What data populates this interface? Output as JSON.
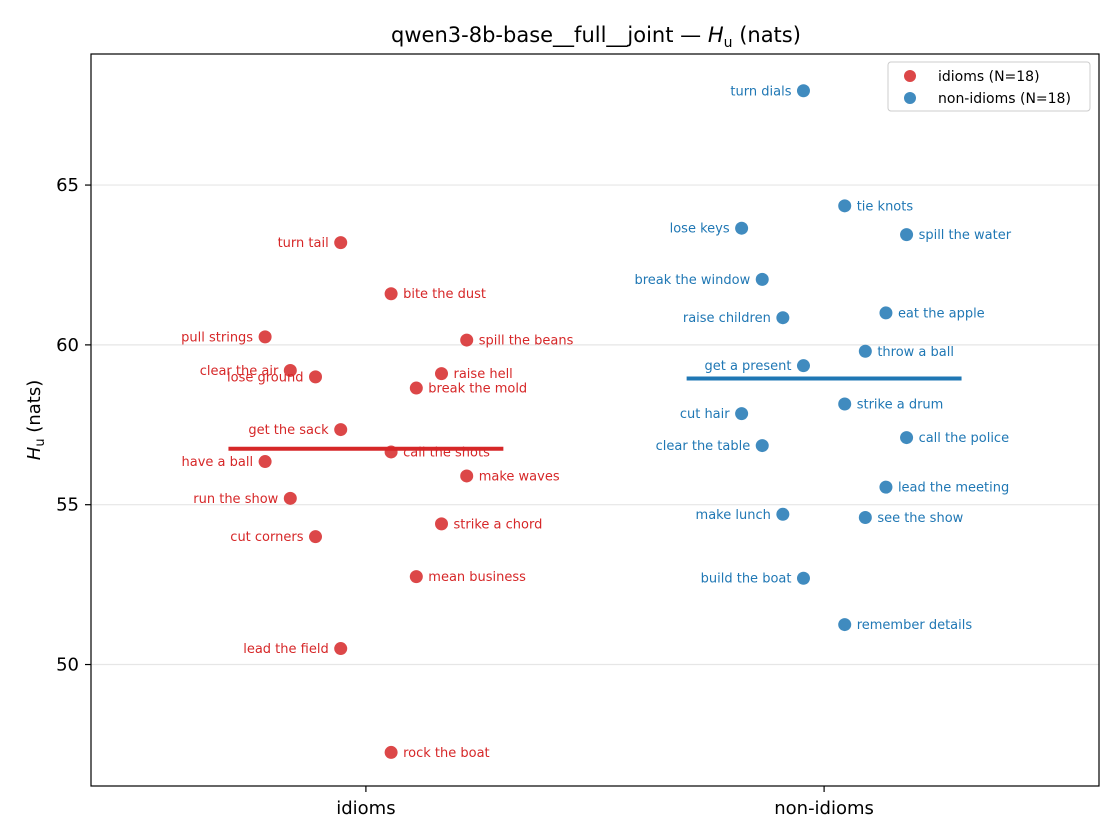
{
  "chart_data": {
    "type": "scatter",
    "title_main": "qwen3-8b-base__full__joint — ",
    "title_var": "H",
    "title_sub": "u",
    "title_units": " (nats)",
    "ylabel_var": "H",
    "ylabel_sub": "u",
    "ylabel_units": " (nats)",
    "categories": [
      "idioms",
      "non-idioms"
    ],
    "ylim": [
      46.2,
      69.1
    ],
    "yticks": [
      50,
      55,
      60,
      65
    ],
    "grid": "horizontal",
    "legend_position": "top-right",
    "series": [
      {
        "name": "idioms (N=18)",
        "category": "idioms",
        "color": "#d62728",
        "mean": 56.75,
        "points": [
          {
            "label": "turn tail",
            "offset": -0.055,
            "y": 63.2,
            "side": "left"
          },
          {
            "label": "bite the dust",
            "offset": 0.055,
            "y": 61.6,
            "side": "right"
          },
          {
            "label": "pull strings",
            "offset": -0.22,
            "y": 60.25,
            "side": "left"
          },
          {
            "label": "spill the beans",
            "offset": 0.22,
            "y": 60.15,
            "side": "right"
          },
          {
            "label": "clear the air",
            "offset": -0.165,
            "y": 59.2,
            "side": "left"
          },
          {
            "label": "lose ground",
            "offset": -0.11,
            "y": 59.0,
            "side": "left"
          },
          {
            "label": "raise hell",
            "offset": 0.165,
            "y": 59.1,
            "side": "right"
          },
          {
            "label": "break the mold",
            "offset": 0.11,
            "y": 58.65,
            "side": "right"
          },
          {
            "label": "get the sack",
            "offset": -0.055,
            "y": 57.35,
            "side": "left"
          },
          {
            "label": "call the shots",
            "offset": 0.055,
            "y": 56.65,
            "side": "right"
          },
          {
            "label": "have a ball",
            "offset": -0.22,
            "y": 56.35,
            "side": "left"
          },
          {
            "label": "make waves",
            "offset": 0.22,
            "y": 55.9,
            "side": "right"
          },
          {
            "label": "run the show",
            "offset": -0.165,
            "y": 55.2,
            "side": "left"
          },
          {
            "label": "strike a chord",
            "offset": 0.165,
            "y": 54.4,
            "side": "right"
          },
          {
            "label": "cut corners",
            "offset": -0.11,
            "y": 54.0,
            "side": "left"
          },
          {
            "label": "mean business",
            "offset": 0.11,
            "y": 52.75,
            "side": "right"
          },
          {
            "label": "lead the field",
            "offset": -0.055,
            "y": 50.5,
            "side": "left"
          },
          {
            "label": "rock the boat",
            "offset": 0.055,
            "y": 47.25,
            "side": "right"
          }
        ]
      },
      {
        "name": "non-idioms (N=18)",
        "category": "non-idioms",
        "color": "#1f77b4",
        "mean": 58.95,
        "points": [
          {
            "label": "turn dials",
            "offset": -0.045,
            "y": 67.95,
            "side": "left"
          },
          {
            "label": "tie knots",
            "offset": 0.045,
            "y": 64.35,
            "side": "right"
          },
          {
            "label": "lose keys",
            "offset": -0.18,
            "y": 63.65,
            "side": "left"
          },
          {
            "label": "spill the water",
            "offset": 0.18,
            "y": 63.45,
            "side": "right"
          },
          {
            "label": "break the window",
            "offset": -0.135,
            "y": 62.05,
            "side": "left"
          },
          {
            "label": "eat the apple",
            "offset": 0.135,
            "y": 61.0,
            "side": "right"
          },
          {
            "label": "raise children",
            "offset": -0.09,
            "y": 60.85,
            "side": "left"
          },
          {
            "label": "throw a ball",
            "offset": 0.09,
            "y": 59.8,
            "side": "right"
          },
          {
            "label": "get a present",
            "offset": -0.045,
            "y": 59.35,
            "side": "left"
          },
          {
            "label": "strike a drum",
            "offset": 0.045,
            "y": 58.15,
            "side": "right"
          },
          {
            "label": "cut hair",
            "offset": -0.18,
            "y": 57.85,
            "side": "left"
          },
          {
            "label": "call the police",
            "offset": 0.18,
            "y": 57.1,
            "side": "right"
          },
          {
            "label": "clear the table",
            "offset": -0.135,
            "y": 56.85,
            "side": "left"
          },
          {
            "label": "lead the meeting",
            "offset": 0.135,
            "y": 55.55,
            "side": "right"
          },
          {
            "label": "make lunch",
            "offset": -0.09,
            "y": 54.7,
            "side": "left"
          },
          {
            "label": "see the show",
            "offset": 0.09,
            "y": 54.6,
            "side": "right"
          },
          {
            "label": "build the boat",
            "offset": -0.045,
            "y": 52.7,
            "side": "left"
          },
          {
            "label": "remember details",
            "offset": 0.045,
            "y": 51.25,
            "side": "right"
          }
        ]
      }
    ]
  }
}
